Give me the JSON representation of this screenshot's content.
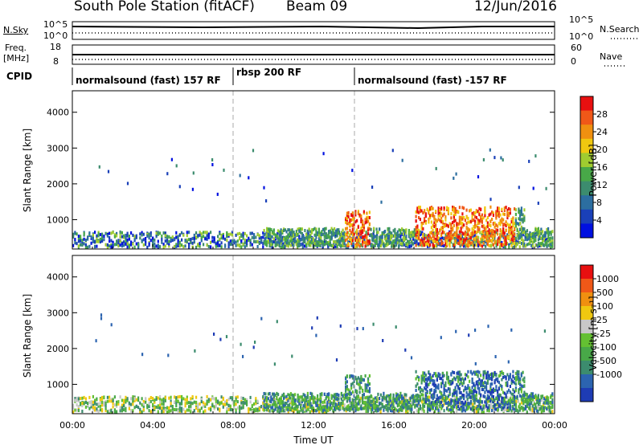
{
  "header": {
    "station": "South Pole Station (fitACF)",
    "beam": "Beam 09",
    "date": "12/Jun/2016"
  },
  "left_labels": {
    "nsky": "N.Sky",
    "nsky_ticks": [
      "10^5",
      "10^0"
    ],
    "freq": "Freq.",
    "freq_unit": "[MHz]",
    "freq_ticks": [
      "18",
      "8"
    ],
    "cpid": "CPID"
  },
  "right_labels": {
    "nsearch": "N.Search",
    "nsearch_ticks": [
      "10^5",
      "10^0"
    ],
    "nave": "Nave",
    "nave_ticks": [
      "60",
      "0"
    ]
  },
  "cpid_segments": [
    {
      "label": "normalsound (fast) 157 RF"
    },
    {
      "label": "rbsp 200 RF"
    },
    {
      "label": "normalsound (fast) -157 RF"
    }
  ],
  "chart_data": [
    {
      "type": "heatmap",
      "title": "",
      "xlabel": "Time UT",
      "ylabel": "Slant Range [km]",
      "x_ticks": [
        "00:00",
        "04:00",
        "08:00",
        "12:00",
        "16:00",
        "20:00",
        "00:00"
      ],
      "xlim_hours": [
        0,
        24
      ],
      "y_ticks": [
        "1000",
        "2000",
        "3000",
        "4000"
      ],
      "ylim": [
        180,
        4600
      ],
      "colorbar": {
        "label": "Power [dB]",
        "ticks": [
          "4",
          "8",
          "12",
          "16",
          "20",
          "24",
          "28"
        ],
        "colors": [
          "#0010e0",
          "#1a40b8",
          "#2c6ea0",
          "#3c8c6e",
          "#48a848",
          "#a0cc30",
          "#f0c810",
          "#f09010",
          "#f05818",
          "#e81010"
        ]
      }
    },
    {
      "type": "heatmap",
      "title": "",
      "xlabel": "Time UT",
      "ylabel": "Slant Range [km]",
      "x_ticks": [
        "00:00",
        "04:00",
        "08:00",
        "12:00",
        "16:00",
        "20:00",
        "00:00"
      ],
      "xlim_hours": [
        0,
        24
      ],
      "y_ticks": [
        "1000",
        "2000",
        "3000",
        "4000"
      ],
      "ylim": [
        180,
        4600
      ],
      "colorbar": {
        "label": "Velocity [m s⁻¹]",
        "ticks": [
          "1000",
          "500",
          "100",
          "25",
          "-25",
          "-100",
          "-500",
          "-1000"
        ],
        "colors": [
          "#1e3cb4",
          "#2c64b0",
          "#3c8c6e",
          "#48a848",
          "#64c032",
          "#c8c8c8",
          "#f0c810",
          "#f09010",
          "#f05818",
          "#e81010"
        ]
      }
    }
  ]
}
